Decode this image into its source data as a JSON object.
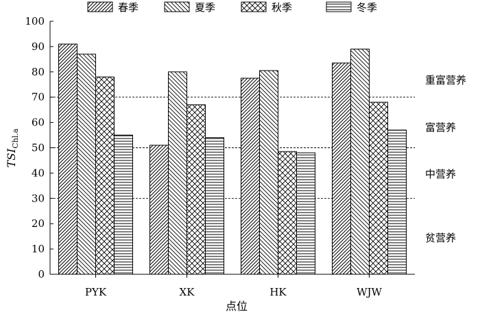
{
  "chart_data": {
    "type": "bar",
    "categories": [
      "PYK",
      "XK",
      "HK",
      "WJW"
    ],
    "series": [
      {
        "name": "春季",
        "values": [
          91,
          51,
          77.5,
          83.5
        ]
      },
      {
        "name": "夏季",
        "values": [
          87,
          80,
          80.5,
          89
        ]
      },
      {
        "name": "秋季",
        "values": [
          78,
          67,
          48.5,
          68
        ]
      },
      {
        "name": "冬季",
        "values": [
          55,
          54,
          48,
          57
        ]
      }
    ],
    "xlabel": "点位",
    "ylabel_main": "TSI",
    "ylabel_sub": "Chl.a",
    "ylim": [
      0,
      100
    ],
    "yticks": [
      "0",
      "10",
      "20",
      "30",
      "40",
      "50",
      "60",
      "70",
      "80",
      "90",
      "100"
    ],
    "legend_position": "top",
    "grid": false,
    "thresholds": [
      {
        "value": 70,
        "label": "重富营养"
      },
      {
        "value": 50,
        "label": "富营养"
      },
      {
        "value": 30,
        "label": "中营养"
      },
      {
        "value": 0,
        "label": "贫营养"
      }
    ],
    "zone_labels": [
      "重富营养",
      "富营养",
      "中营养",
      "贫营养"
    ]
  }
}
